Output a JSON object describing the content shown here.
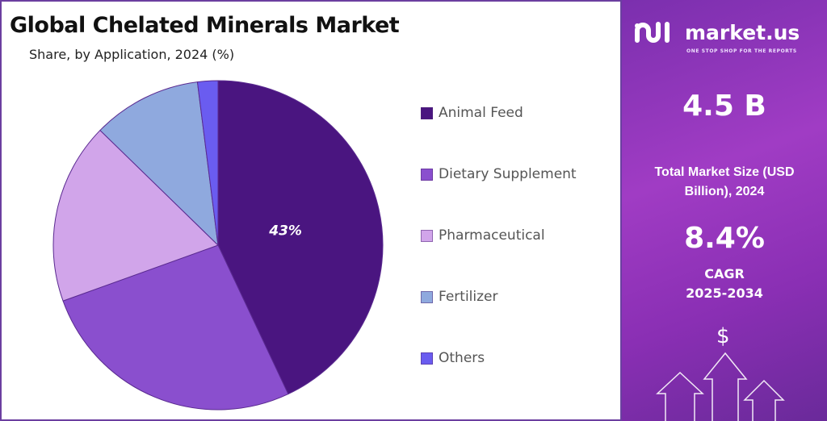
{
  "chart_data": {
    "type": "pie",
    "title": "Global Chelated Minerals Market",
    "subtitle": "Share, by Application, 2024 (%)",
    "categories": [
      "Animal Feed",
      "Dietary Supplement",
      "Pharmaceutical",
      "Fertilizer",
      "Others"
    ],
    "values": [
      43,
      26.5,
      17.8,
      10.7,
      2
    ],
    "colors": [
      "#4a1580",
      "#8a4fce",
      "#d1a5ea",
      "#8fa9de",
      "#6a5cf0"
    ],
    "data_labels": [
      "43%",
      "",
      "",
      "",
      ""
    ],
    "start": "12 o'clock, clockwise",
    "legend": "right"
  },
  "sidebar": {
    "brand": "market.us",
    "tagline": "ONE STOP SHOP FOR THE REPORTS",
    "market_size": "4.5 B",
    "market_size_label": "Total Market Size (USD Billion), 2024",
    "cagr": "8.4%",
    "cagr_label": "CAGR",
    "cagr_period": "2025-2034",
    "dollar": "$"
  }
}
